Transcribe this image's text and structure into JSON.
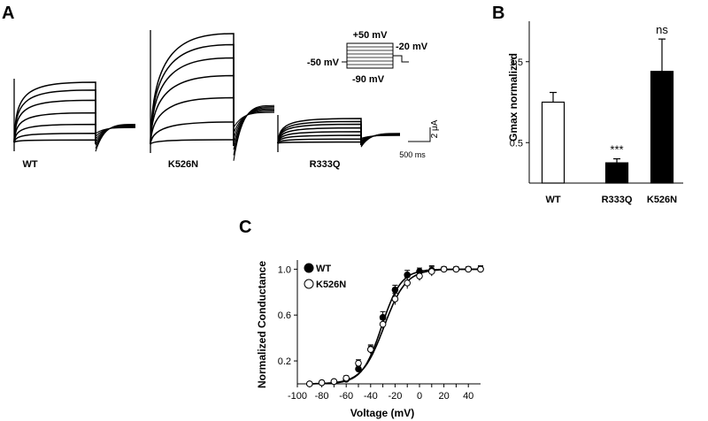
{
  "panels": {
    "a": {
      "letter": "A",
      "trace_labels": [
        "WT",
        "K526N",
        "R333Q"
      ],
      "protocol": {
        "top": "+50 mV",
        "left": "-50 mV",
        "right": "-20 mV",
        "bottom": "-90 mV"
      },
      "scale_bar": {
        "y": "2 μA",
        "x": "500 ms"
      },
      "traces": [
        {
          "name": "WT",
          "steady_levels": [
            0.04,
            0.15,
            0.3,
            0.49,
            0.7,
            0.87,
            1.0
          ],
          "tail": 0.3
        },
        {
          "name": "K526N",
          "steady_levels": [
            0.04,
            0.2,
            0.42,
            0.62,
            0.78,
            0.9,
            1.0
          ],
          "tail": 0.35
        },
        {
          "name": "R333Q",
          "steady_levels": [
            0.05,
            0.17,
            0.32,
            0.47,
            0.62,
            0.77,
            0.88,
            1.0
          ],
          "tail": 0.4
        }
      ]
    },
    "b": {
      "letter": "B"
    },
    "c": {
      "letter": "C"
    }
  },
  "chart_data": [
    {
      "type": "bar",
      "panel": "B",
      "categories": [
        "WT",
        "R333Q",
        "K526N"
      ],
      "values": [
        1.0,
        0.25,
        1.38
      ],
      "errors": [
        0.12,
        0.05,
        0.4
      ],
      "fills": [
        "#ffffff",
        "#000000",
        "#000000"
      ],
      "annotations": [
        "",
        "***",
        "ns"
      ],
      "ylabel": "Gmax normalized",
      "yticks": [
        0.5,
        1.5
      ],
      "ylim": [
        0,
        2.0
      ]
    },
    {
      "type": "line",
      "panel": "C",
      "xlabel": "Voltage (mV)",
      "ylabel": "Normalized Conductance",
      "xlim": [
        -100,
        50
      ],
      "ylim": [
        0,
        1.08
      ],
      "xticks": [
        -100,
        -90,
        -80,
        -70,
        -60,
        -50,
        -40,
        -30,
        -20,
        -10,
        0,
        10,
        20,
        30,
        40
      ],
      "yticks": [
        0.2,
        0.6,
        1.0
      ],
      "legend": "top-left",
      "x": [
        -90,
        -80,
        -70,
        -60,
        -50,
        -40,
        -30,
        -20,
        -10,
        0,
        10,
        20,
        30,
        40,
        50
      ],
      "series": [
        {
          "name": "WT",
          "marker": "filled",
          "values": [
            0.0,
            0.01,
            0.02,
            0.04,
            0.13,
            0.3,
            0.58,
            0.82,
            0.95,
            0.98,
            0.99,
            1.0,
            1.0,
            1.0,
            1.0
          ],
          "errors": [
            0.01,
            0.01,
            0.01,
            0.02,
            0.03,
            0.04,
            0.05,
            0.04,
            0.04,
            0.03,
            0.04,
            0.02,
            0.02,
            0.02,
            0.02
          ],
          "fit": {
            "v_half": -31,
            "slope": 8.0
          }
        },
        {
          "name": "K526N",
          "marker": "open",
          "values": [
            0.0,
            0.01,
            0.02,
            0.05,
            0.18,
            0.3,
            0.52,
            0.74,
            0.88,
            0.94,
            0.98,
            1.0,
            1.0,
            1.0,
            1.0
          ],
          "errors": [
            0.01,
            0.01,
            0.01,
            0.02,
            0.03,
            0.03,
            0.04,
            0.05,
            0.05,
            0.04,
            0.04,
            0.02,
            0.02,
            0.02,
            0.03
          ],
          "fit": {
            "v_half": -29,
            "slope": 9.0
          }
        }
      ]
    }
  ]
}
